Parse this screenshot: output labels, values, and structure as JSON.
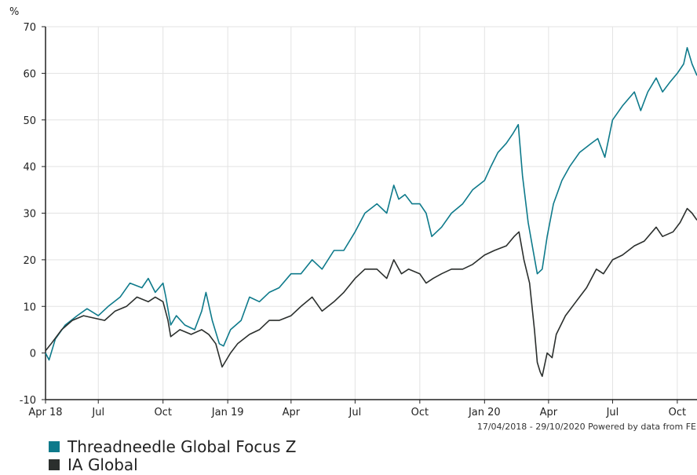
{
  "chart_data": {
    "type": "line",
    "ylabel": "%",
    "ylim": [
      -10,
      70
    ],
    "y_ticks": [
      -10,
      0,
      10,
      20,
      30,
      40,
      50,
      60,
      70
    ],
    "x_range": [
      "2018-04-17",
      "2020-10-29"
    ],
    "x_ticks": [
      {
        "date": "2018-04-17",
        "label": "Apr 18"
      },
      {
        "date": "2018-07-01",
        "label": "Jul"
      },
      {
        "date": "2018-10-01",
        "label": "Oct"
      },
      {
        "date": "2019-01-01",
        "label": "Jan 19"
      },
      {
        "date": "2019-04-01",
        "label": "Apr"
      },
      {
        "date": "2019-07-01",
        "label": "Jul"
      },
      {
        "date": "2019-10-01",
        "label": "Oct"
      },
      {
        "date": "2020-01-01",
        "label": "Jan 20"
      },
      {
        "date": "2020-04-01",
        "label": "Apr"
      },
      {
        "date": "2020-07-01",
        "label": "Jul"
      },
      {
        "date": "2020-10-01",
        "label": "Oct"
      }
    ],
    "grid": true,
    "legend_position": "bottom-left",
    "source_note": "17/04/2018 - 29/10/2020 Powered by data from FE",
    "series": [
      {
        "name": "Threadneedle Global Focus Z",
        "color": "#0e7a8b",
        "points": [
          [
            "2018-04-17",
            0
          ],
          [
            "2018-04-22",
            -1.5
          ],
          [
            "2018-05-01",
            3
          ],
          [
            "2018-05-15",
            6
          ],
          [
            "2018-06-01",
            8
          ],
          [
            "2018-06-15",
            9.5
          ],
          [
            "2018-07-01",
            8
          ],
          [
            "2018-07-15",
            10
          ],
          [
            "2018-08-01",
            12
          ],
          [
            "2018-08-15",
            15
          ],
          [
            "2018-09-01",
            14
          ],
          [
            "2018-09-10",
            16
          ],
          [
            "2018-09-20",
            13
          ],
          [
            "2018-10-01",
            15
          ],
          [
            "2018-10-05",
            12
          ],
          [
            "2018-10-12",
            6
          ],
          [
            "2018-10-20",
            8
          ],
          [
            "2018-11-01",
            6
          ],
          [
            "2018-11-15",
            5
          ],
          [
            "2018-11-25",
            9
          ],
          [
            "2018-12-01",
            13
          ],
          [
            "2018-12-10",
            7
          ],
          [
            "2018-12-20",
            2
          ],
          [
            "2018-12-26",
            1.5
          ],
          [
            "2019-01-05",
            5
          ],
          [
            "2019-01-20",
            7
          ],
          [
            "2019-02-01",
            12
          ],
          [
            "2019-02-15",
            11
          ],
          [
            "2019-03-01",
            13
          ],
          [
            "2019-03-15",
            14
          ],
          [
            "2019-04-01",
            17
          ],
          [
            "2019-04-15",
            17
          ],
          [
            "2019-05-01",
            20
          ],
          [
            "2019-05-15",
            18
          ],
          [
            "2019-06-01",
            22
          ],
          [
            "2019-06-15",
            22
          ],
          [
            "2019-07-01",
            26
          ],
          [
            "2019-07-15",
            30
          ],
          [
            "2019-08-01",
            32
          ],
          [
            "2019-08-15",
            30
          ],
          [
            "2019-08-25",
            36
          ],
          [
            "2019-09-01",
            33
          ],
          [
            "2019-09-10",
            34
          ],
          [
            "2019-09-20",
            32
          ],
          [
            "2019-10-01",
            32
          ],
          [
            "2019-10-10",
            30
          ],
          [
            "2019-10-18",
            25
          ],
          [
            "2019-11-01",
            27
          ],
          [
            "2019-11-15",
            30
          ],
          [
            "2019-12-01",
            32
          ],
          [
            "2019-12-15",
            35
          ],
          [
            "2020-01-01",
            37
          ],
          [
            "2020-01-10",
            40
          ],
          [
            "2020-01-20",
            43
          ],
          [
            "2020-02-01",
            45
          ],
          [
            "2020-02-10",
            47
          ],
          [
            "2020-02-18",
            49
          ],
          [
            "2020-02-24",
            38
          ],
          [
            "2020-03-03",
            28
          ],
          [
            "2020-03-10",
            22
          ],
          [
            "2020-03-16",
            17
          ],
          [
            "2020-03-23",
            18
          ],
          [
            "2020-03-30",
            25
          ],
          [
            "2020-04-08",
            32
          ],
          [
            "2020-04-20",
            37
          ],
          [
            "2020-05-01",
            40
          ],
          [
            "2020-05-15",
            43
          ],
          [
            "2020-06-01",
            45
          ],
          [
            "2020-06-10",
            46
          ],
          [
            "2020-06-20",
            42
          ],
          [
            "2020-07-01",
            50
          ],
          [
            "2020-07-15",
            53
          ],
          [
            "2020-08-01",
            56
          ],
          [
            "2020-08-10",
            52
          ],
          [
            "2020-08-20",
            56
          ],
          [
            "2020-09-01",
            59
          ],
          [
            "2020-09-10",
            56
          ],
          [
            "2020-09-20",
            58
          ],
          [
            "2020-10-01",
            60
          ],
          [
            "2020-10-10",
            62
          ],
          [
            "2020-10-15",
            65.5
          ],
          [
            "2020-10-22",
            62
          ],
          [
            "2020-10-29",
            59.5
          ]
        ]
      },
      {
        "name": "IA Global",
        "color": "#2b2f2d",
        "points": [
          [
            "2018-04-17",
            0.5
          ],
          [
            "2018-04-25",
            2
          ],
          [
            "2018-05-10",
            5
          ],
          [
            "2018-05-25",
            7
          ],
          [
            "2018-06-10",
            8
          ],
          [
            "2018-06-25",
            7.5
          ],
          [
            "2018-07-10",
            7
          ],
          [
            "2018-07-25",
            9
          ],
          [
            "2018-08-10",
            10
          ],
          [
            "2018-08-25",
            12
          ],
          [
            "2018-09-10",
            11
          ],
          [
            "2018-09-20",
            12
          ],
          [
            "2018-10-01",
            11
          ],
          [
            "2018-10-08",
            7
          ],
          [
            "2018-10-12",
            3.5
          ],
          [
            "2018-10-25",
            5
          ],
          [
            "2018-11-10",
            4
          ],
          [
            "2018-11-25",
            5
          ],
          [
            "2018-12-05",
            4
          ],
          [
            "2018-12-15",
            2
          ],
          [
            "2018-12-24",
            -3
          ],
          [
            "2019-01-05",
            0
          ],
          [
            "2019-01-15",
            2
          ],
          [
            "2019-02-01",
            4
          ],
          [
            "2019-02-15",
            5
          ],
          [
            "2019-03-01",
            7
          ],
          [
            "2019-03-15",
            7
          ],
          [
            "2019-04-01",
            8
          ],
          [
            "2019-04-15",
            10
          ],
          [
            "2019-05-01",
            12
          ],
          [
            "2019-05-15",
            9
          ],
          [
            "2019-06-01",
            11
          ],
          [
            "2019-06-15",
            13
          ],
          [
            "2019-07-01",
            16
          ],
          [
            "2019-07-15",
            18
          ],
          [
            "2019-08-01",
            18
          ],
          [
            "2019-08-15",
            16
          ],
          [
            "2019-08-25",
            20
          ],
          [
            "2019-09-05",
            17
          ],
          [
            "2019-09-15",
            18
          ],
          [
            "2019-10-01",
            17
          ],
          [
            "2019-10-10",
            15
          ],
          [
            "2019-10-20",
            16
          ],
          [
            "2019-11-01",
            17
          ],
          [
            "2019-11-15",
            18
          ],
          [
            "2019-12-01",
            18
          ],
          [
            "2019-12-15",
            19
          ],
          [
            "2020-01-01",
            21
          ],
          [
            "2020-01-15",
            22
          ],
          [
            "2020-02-01",
            23
          ],
          [
            "2020-02-12",
            25
          ],
          [
            "2020-02-19",
            26
          ],
          [
            "2020-02-26",
            20
          ],
          [
            "2020-03-05",
            15
          ],
          [
            "2020-03-12",
            5
          ],
          [
            "2020-03-16",
            -2
          ],
          [
            "2020-03-20",
            -4
          ],
          [
            "2020-03-23",
            -5
          ],
          [
            "2020-03-30",
            0
          ],
          [
            "2020-04-06",
            -1
          ],
          [
            "2020-04-12",
            4
          ],
          [
            "2020-04-25",
            8
          ],
          [
            "2020-05-10",
            11
          ],
          [
            "2020-05-25",
            14
          ],
          [
            "2020-06-08",
            18
          ],
          [
            "2020-06-18",
            17
          ],
          [
            "2020-07-01",
            20
          ],
          [
            "2020-07-15",
            21
          ],
          [
            "2020-08-01",
            23
          ],
          [
            "2020-08-15",
            24
          ],
          [
            "2020-09-01",
            27
          ],
          [
            "2020-09-10",
            25
          ],
          [
            "2020-09-25",
            26
          ],
          [
            "2020-10-05",
            28
          ],
          [
            "2020-10-15",
            31
          ],
          [
            "2020-10-22",
            30
          ],
          [
            "2020-10-29",
            28.5
          ]
        ]
      }
    ]
  }
}
